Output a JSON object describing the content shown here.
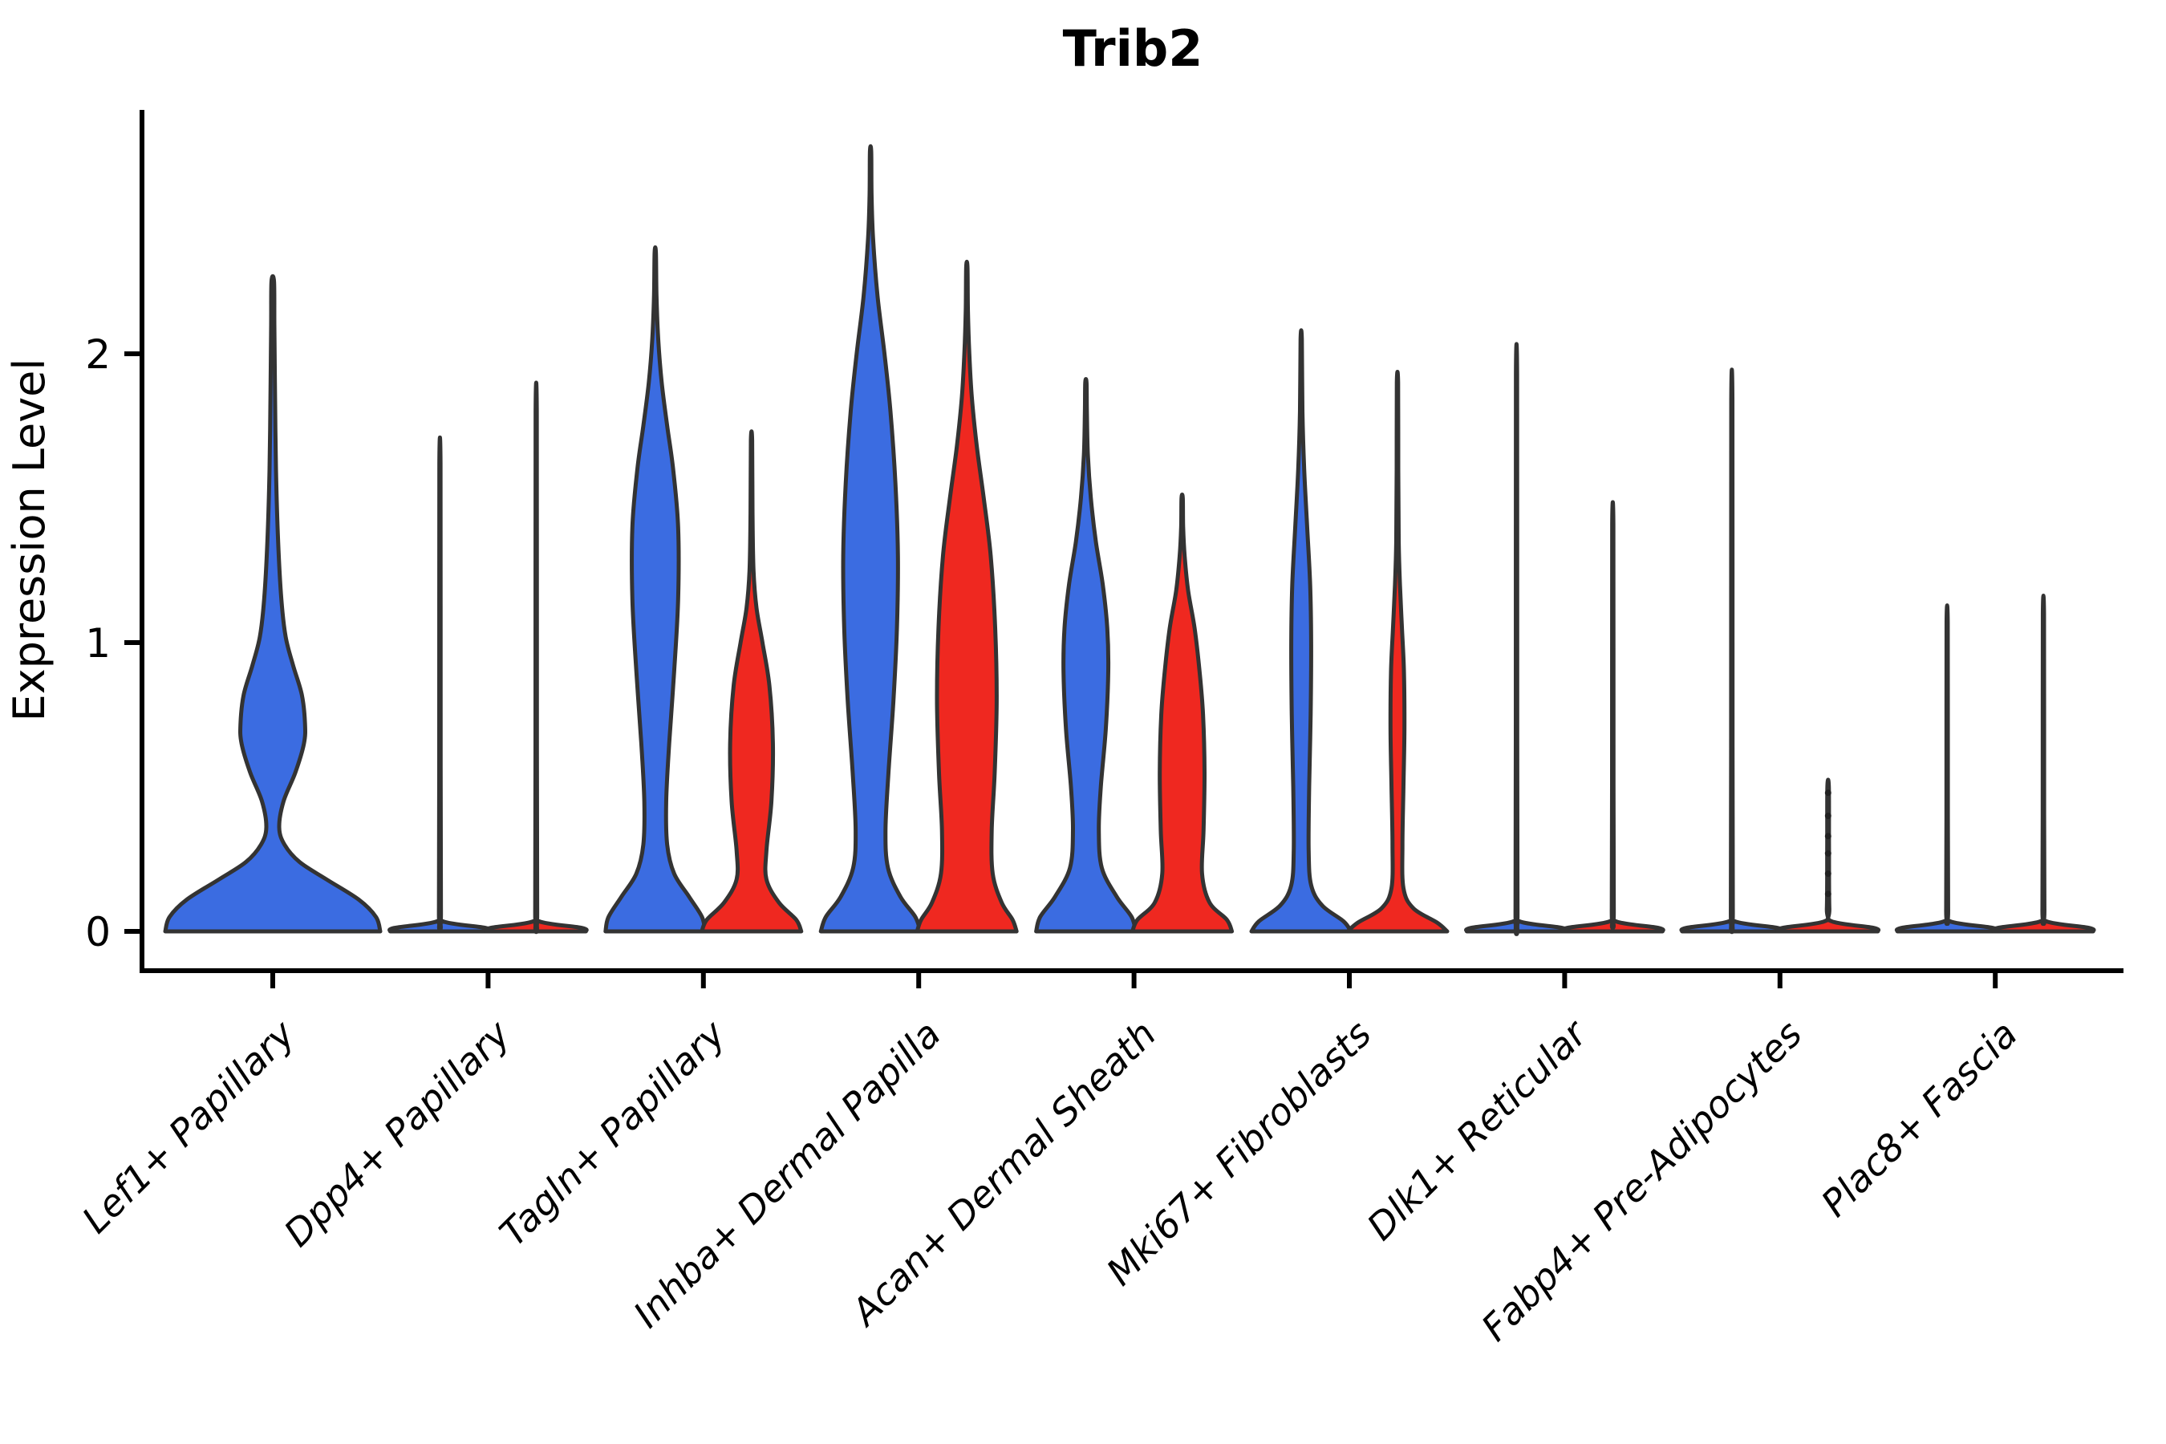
{
  "title": "Trib2",
  "ylabel": "Expression Level",
  "colors": {
    "group1": "#3B6CE1",
    "group2": "#EF2820",
    "edge": "#333333",
    "axis": "#000000"
  },
  "chart_data": {
    "type": "violin",
    "title": "Trib2",
    "ylabel": "Expression Level",
    "xlabel": "",
    "ylim": [
      -0.14,
      2.84
    ],
    "yticks": [
      0,
      1,
      2
    ],
    "grid": false,
    "legend": "none",
    "categories": [
      "Lef1+ Papillary",
      "Dpp4+ Papillary",
      "Tagln+ Papillary",
      "Inhba+ Dermal Papilla",
      "Acan+ Dermal Sheath",
      "Mki67+ Fibroblasts",
      "Dlk1+ Reticular",
      "Fabp4+ Pre-Adipocytes",
      "Plac8+ Fascia"
    ],
    "group_colors": {
      "group1": "#3B6CE1",
      "group2": "#EF2820"
    },
    "max_expression_by_group": {
      "group1": [
        2.25,
        1.62,
        2.35,
        2.7,
        1.9,
        2.05,
        1.93,
        1.84,
        1.07
      ],
      "group2": [
        null,
        1.8,
        1.7,
        2.3,
        1.5,
        1.9,
        1.41,
        0.5,
        1.1
      ]
    },
    "violins": [
      {
        "cat": 0,
        "group": "group1",
        "color": "#3B6CE1",
        "center_offset": 0,
        "half_width": 134,
        "max": 2.25,
        "profile": [
          [
            0,
            1
          ],
          [
            0.05,
            0.96
          ],
          [
            0.11,
            0.8
          ],
          [
            0.18,
            0.5
          ],
          [
            0.24,
            0.25
          ],
          [
            0.3,
            0.11
          ],
          [
            0.36,
            0.06
          ],
          [
            0.45,
            0.1
          ],
          [
            0.55,
            0.21
          ],
          [
            0.65,
            0.29
          ],
          [
            0.72,
            0.3
          ],
          [
            0.82,
            0.27
          ],
          [
            0.92,
            0.19
          ],
          [
            1.02,
            0.12
          ],
          [
            1.15,
            0.08
          ],
          [
            1.35,
            0.05
          ],
          [
            1.6,
            0.03
          ],
          [
            1.9,
            0.02
          ],
          [
            2.1,
            0.015
          ],
          [
            2.25,
            0.012
          ]
        ]
      },
      {
        "cat": 1,
        "group": "group1",
        "color": "#3B6CE1",
        "center_offset": -60,
        "half_width": 62,
        "max": 1.62,
        "profile": [
          [
            0,
            1
          ],
          [
            0.012,
            0.92
          ],
          [
            0.035,
            0.06
          ],
          [
            0.08,
            0.02
          ],
          [
            0.9,
            0.014
          ],
          [
            1.62,
            0.012
          ]
        ]
      },
      {
        "cat": 1,
        "group": "group2",
        "color": "#EF2820",
        "center_offset": 60,
        "half_width": 62,
        "max": 1.8,
        "profile": [
          [
            0,
            1
          ],
          [
            0.012,
            0.92
          ],
          [
            0.035,
            0.06
          ],
          [
            0.08,
            0.02
          ],
          [
            1.0,
            0.014
          ],
          [
            1.8,
            0.012
          ]
        ]
      },
      {
        "cat": 2,
        "group": "group1",
        "color": "#3B6CE1",
        "center_offset": -60,
        "half_width": 62,
        "max": 2.35,
        "profile": [
          [
            0,
            1
          ],
          [
            0.05,
            0.94
          ],
          [
            0.12,
            0.68
          ],
          [
            0.2,
            0.38
          ],
          [
            0.3,
            0.24
          ],
          [
            0.45,
            0.22
          ],
          [
            0.65,
            0.28
          ],
          [
            0.9,
            0.38
          ],
          [
            1.15,
            0.46
          ],
          [
            1.4,
            0.46
          ],
          [
            1.6,
            0.36
          ],
          [
            1.75,
            0.24
          ],
          [
            1.9,
            0.13
          ],
          [
            2.05,
            0.06
          ],
          [
            2.2,
            0.025
          ],
          [
            2.35,
            0.013
          ]
        ]
      },
      {
        "cat": 2,
        "group": "group2",
        "color": "#EF2820",
        "center_offset": 60,
        "half_width": 62,
        "max": 1.7,
        "profile": [
          [
            0,
            1
          ],
          [
            0.04,
            0.9
          ],
          [
            0.1,
            0.55
          ],
          [
            0.18,
            0.3
          ],
          [
            0.28,
            0.3
          ],
          [
            0.45,
            0.4
          ],
          [
            0.65,
            0.43
          ],
          [
            0.85,
            0.36
          ],
          [
            1.0,
            0.22
          ],
          [
            1.12,
            0.1
          ],
          [
            1.25,
            0.04
          ],
          [
            1.45,
            0.02
          ],
          [
            1.7,
            0.013
          ]
        ]
      },
      {
        "cat": 3,
        "group": "group1",
        "color": "#3B6CE1",
        "center_offset": -60,
        "half_width": 62,
        "max": 2.7,
        "profile": [
          [
            0,
            1
          ],
          [
            0.05,
            0.9
          ],
          [
            0.12,
            0.6
          ],
          [
            0.22,
            0.35
          ],
          [
            0.35,
            0.3
          ],
          [
            0.55,
            0.36
          ],
          [
            0.8,
            0.46
          ],
          [
            1.05,
            0.53
          ],
          [
            1.3,
            0.55
          ],
          [
            1.55,
            0.5
          ],
          [
            1.8,
            0.4
          ],
          [
            2.0,
            0.28
          ],
          [
            2.2,
            0.14
          ],
          [
            2.4,
            0.05
          ],
          [
            2.55,
            0.02
          ],
          [
            2.7,
            0.013
          ]
        ]
      },
      {
        "cat": 3,
        "group": "group2",
        "color": "#EF2820",
        "center_offset": 60,
        "half_width": 62,
        "max": 2.3,
        "profile": [
          [
            0,
            1
          ],
          [
            0.04,
            0.92
          ],
          [
            0.1,
            0.7
          ],
          [
            0.2,
            0.52
          ],
          [
            0.35,
            0.5
          ],
          [
            0.55,
            0.56
          ],
          [
            0.8,
            0.6
          ],
          [
            1.05,
            0.57
          ],
          [
            1.3,
            0.48
          ],
          [
            1.5,
            0.34
          ],
          [
            1.68,
            0.2
          ],
          [
            1.85,
            0.1
          ],
          [
            2.0,
            0.05
          ],
          [
            2.15,
            0.022
          ],
          [
            2.3,
            0.013
          ]
        ]
      },
      {
        "cat": 4,
        "group": "group1",
        "color": "#3B6CE1",
        "center_offset": -60,
        "half_width": 62,
        "max": 1.9,
        "profile": [
          [
            0,
            1
          ],
          [
            0.05,
            0.92
          ],
          [
            0.12,
            0.62
          ],
          [
            0.22,
            0.32
          ],
          [
            0.35,
            0.26
          ],
          [
            0.5,
            0.3
          ],
          [
            0.7,
            0.4
          ],
          [
            0.9,
            0.45
          ],
          [
            1.05,
            0.43
          ],
          [
            1.2,
            0.34
          ],
          [
            1.35,
            0.2
          ],
          [
            1.5,
            0.1
          ],
          [
            1.65,
            0.04
          ],
          [
            1.8,
            0.02
          ],
          [
            1.9,
            0.013
          ]
        ]
      },
      {
        "cat": 4,
        "group": "group2",
        "color": "#EF2820",
        "center_offset": 60,
        "half_width": 62,
        "max": 1.5,
        "profile": [
          [
            0,
            1
          ],
          [
            0.04,
            0.9
          ],
          [
            0.1,
            0.55
          ],
          [
            0.2,
            0.4
          ],
          [
            0.35,
            0.43
          ],
          [
            0.55,
            0.45
          ],
          [
            0.75,
            0.42
          ],
          [
            0.9,
            0.35
          ],
          [
            1.05,
            0.25
          ],
          [
            1.18,
            0.12
          ],
          [
            1.3,
            0.05
          ],
          [
            1.4,
            0.02
          ],
          [
            1.5,
            0.013
          ]
        ]
      },
      {
        "cat": 5,
        "group": "group1",
        "color": "#3B6CE1",
        "center_offset": -60,
        "half_width": 62,
        "max": 2.05,
        "profile": [
          [
            0,
            1
          ],
          [
            0.035,
            0.85
          ],
          [
            0.09,
            0.42
          ],
          [
            0.16,
            0.2
          ],
          [
            0.28,
            0.15
          ],
          [
            0.5,
            0.16
          ],
          [
            0.75,
            0.19
          ],
          [
            1.0,
            0.2
          ],
          [
            1.2,
            0.18
          ],
          [
            1.4,
            0.12
          ],
          [
            1.6,
            0.06
          ],
          [
            1.8,
            0.025
          ],
          [
            2.05,
            0.013
          ]
        ]
      },
      {
        "cat": 5,
        "group": "group2",
        "color": "#EF2820",
        "center_offset": 60,
        "half_width": 62,
        "max": 1.9,
        "profile": [
          [
            0,
            1
          ],
          [
            0.03,
            0.8
          ],
          [
            0.08,
            0.32
          ],
          [
            0.15,
            0.12
          ],
          [
            0.3,
            0.1
          ],
          [
            0.5,
            0.12
          ],
          [
            0.7,
            0.14
          ],
          [
            0.9,
            0.13
          ],
          [
            1.05,
            0.09
          ],
          [
            1.2,
            0.05
          ],
          [
            1.35,
            0.025
          ],
          [
            1.6,
            0.016
          ],
          [
            1.9,
            0.013
          ]
        ]
      },
      {
        "cat": 6,
        "group": "group1",
        "color": "#3B6CE1",
        "center_offset": -60,
        "half_width": 62,
        "max": 1.93,
        "profile": [
          [
            0,
            1
          ],
          [
            0.012,
            0.92
          ],
          [
            0.035,
            0.06
          ],
          [
            0.08,
            0.02
          ],
          [
            1.1,
            0.014
          ],
          [
            1.93,
            0.012
          ]
        ]
      },
      {
        "cat": 6,
        "group": "group2",
        "color": "#EF2820",
        "center_offset": 60,
        "half_width": 62,
        "max": 1.41,
        "profile": [
          [
            0,
            1
          ],
          [
            0.012,
            0.92
          ],
          [
            0.035,
            0.06
          ],
          [
            0.08,
            0.02
          ],
          [
            0.8,
            0.014
          ],
          [
            1.41,
            0.012
          ]
        ]
      },
      {
        "cat": 7,
        "group": "group1",
        "color": "#3B6CE1",
        "center_offset": -60,
        "half_width": 62,
        "max": 1.84,
        "profile": [
          [
            0,
            1
          ],
          [
            0.012,
            0.92
          ],
          [
            0.035,
            0.06
          ],
          [
            0.08,
            0.02
          ],
          [
            1.0,
            0.014
          ],
          [
            1.84,
            0.012
          ]
        ]
      },
      {
        "cat": 7,
        "group": "group2",
        "color": "#EF2820",
        "center_offset": 60,
        "half_width": 62,
        "max": 0.5,
        "profile": [
          [
            0,
            1
          ],
          [
            0.012,
            0.92
          ],
          [
            0.035,
            0.07
          ],
          [
            0.08,
            0.025
          ],
          [
            0.3,
            0.018
          ],
          [
            0.5,
            0.015
          ]
        ],
        "points": [
          0.48,
          0.4,
          0.33,
          0.27,
          0.2,
          0.13
        ]
      },
      {
        "cat": 8,
        "group": "group1",
        "color": "#3B6CE1",
        "center_offset": -60,
        "half_width": 62,
        "max": 1.07,
        "profile": [
          [
            0,
            1
          ],
          [
            0.012,
            0.92
          ],
          [
            0.035,
            0.06
          ],
          [
            0.08,
            0.02
          ],
          [
            0.6,
            0.014
          ],
          [
            1.07,
            0.012
          ]
        ]
      },
      {
        "cat": 8,
        "group": "group2",
        "color": "#EF2820",
        "center_offset": 60,
        "half_width": 62,
        "max": 1.1,
        "profile": [
          [
            0,
            1
          ],
          [
            0.012,
            0.92
          ],
          [
            0.035,
            0.06
          ],
          [
            0.08,
            0.02
          ],
          [
            0.6,
            0.014
          ],
          [
            1.1,
            0.012
          ]
        ]
      }
    ]
  }
}
